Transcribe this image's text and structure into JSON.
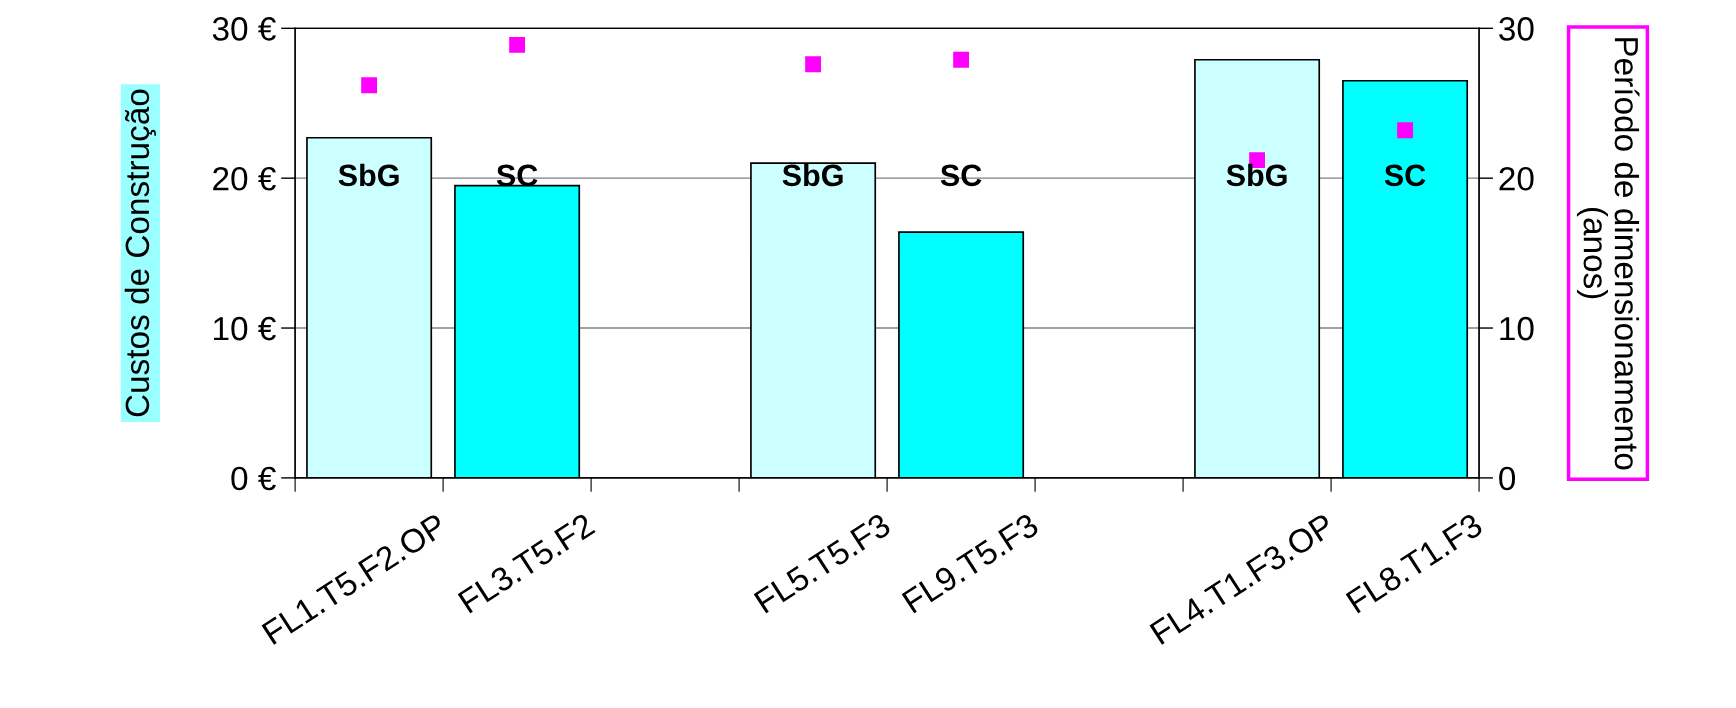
{
  "chart_data": {
    "type": "bar",
    "ylabel": "Custos de Construção",
    "y2label": "Período de dimensionamento (anos)",
    "categories": [
      "FL1.T5.F2.OP",
      "FL3.T5.F2",
      null,
      "FL5.T5.F3",
      "FL9.T5.F3",
      null,
      "FL4.T1.F3.OP",
      "FL8.T1.F3"
    ],
    "series": [
      {
        "type": "bar",
        "colors": [
          "#ccffff",
          "#00ffff",
          null,
          "#ccffff",
          "#00ffff",
          null,
          "#ccffff",
          "#00ffff"
        ],
        "values": [
          22.7,
          19.5,
          null,
          21.0,
          16.4,
          null,
          27.9,
          26.5
        ]
      },
      {
        "type": "scatter",
        "axis": "y2",
        "color": "#ff00ff",
        "marker": "square",
        "values": [
          26.2,
          28.9,
          null,
          27.6,
          27.9,
          null,
          21.2,
          23.2
        ]
      }
    ],
    "ylim": [
      0,
      30
    ],
    "yticks": [
      {
        "value": 0,
        "label": "0 €"
      },
      {
        "value": 10,
        "label": "10 €"
      },
      {
        "value": 20,
        "label": "20 €"
      },
      {
        "value": 30,
        "label": "30 €"
      }
    ],
    "y2lim": [
      0,
      30
    ],
    "y2ticks": [
      0,
      10,
      20,
      30
    ],
    "grid": "y",
    "annotations": [
      "SbG",
      "SC",
      "SbG",
      "SC",
      "SbG",
      "SC"
    ]
  }
}
